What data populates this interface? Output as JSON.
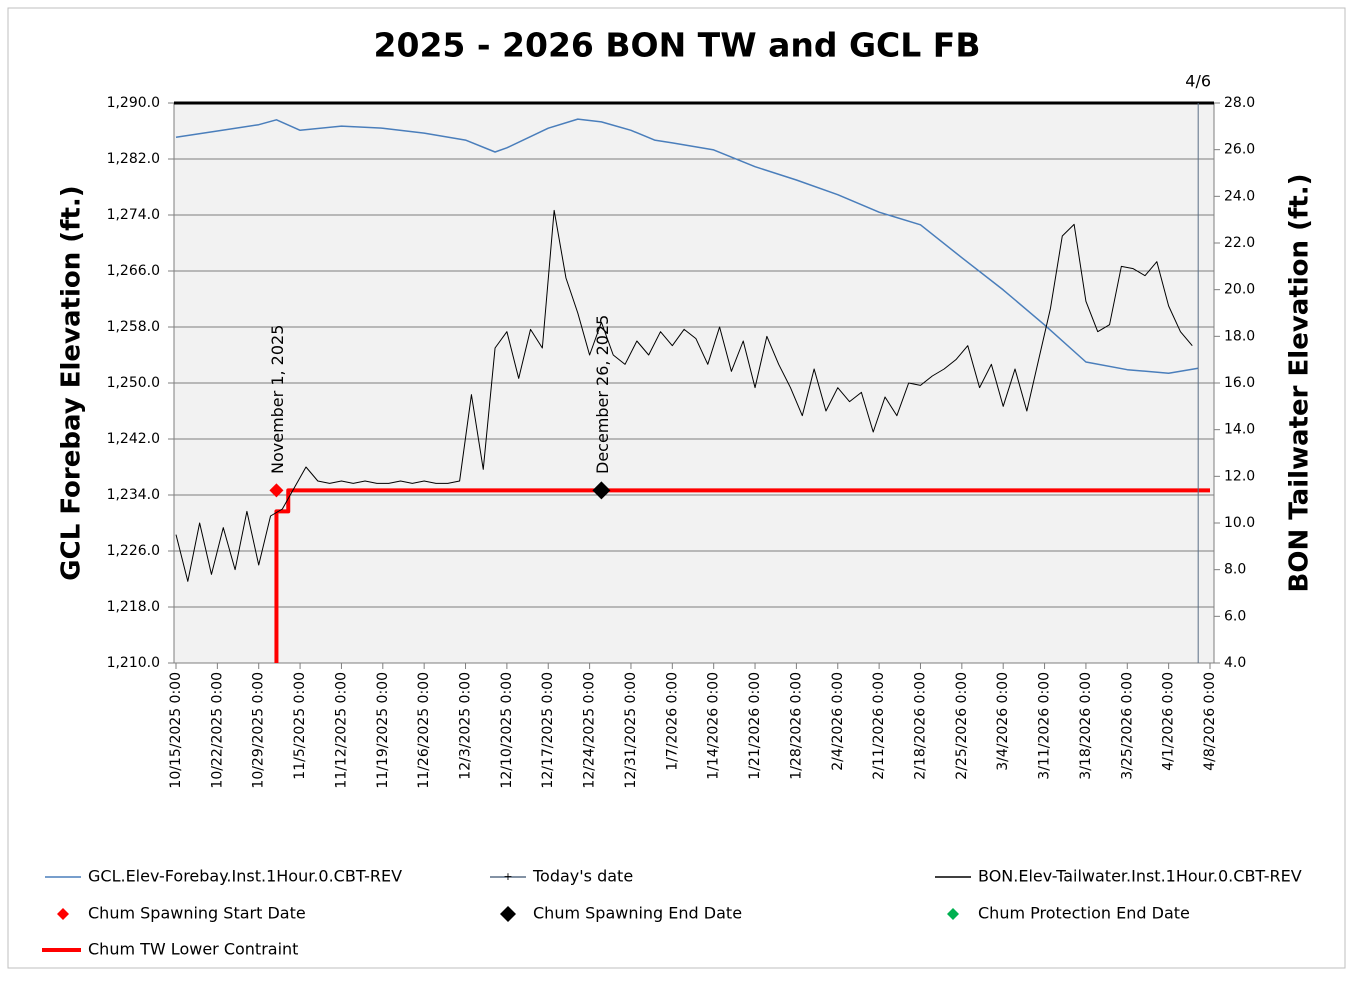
{
  "chart_data": {
    "type": "line",
    "title": "2025 - 2026 BON TW and GCL FB",
    "ylabel": "GCL Forebay Elevation (ft.)",
    "y2label": "BON Tailwater Elevation (ft.)",
    "xlim": [
      "2025-10-15",
      "2026-04-08"
    ],
    "xticks": [
      {
        "value": "2025-10-15",
        "label": "10/15/2025 0:00"
      },
      {
        "value": "2025-10-22",
        "label": "10/22/2025 0:00"
      },
      {
        "value": "2025-10-29",
        "label": "10/29/2025 0:00"
      },
      {
        "value": "2025-11-05",
        "label": "11/5/2025 0:00"
      },
      {
        "value": "2025-11-12",
        "label": "11/12/2025 0:00"
      },
      {
        "value": "2025-11-19",
        "label": "11/19/2025 0:00"
      },
      {
        "value": "2025-11-26",
        "label": "11/26/2025 0:00"
      },
      {
        "value": "2025-12-03",
        "label": "12/3/2025 0:00"
      },
      {
        "value": "2025-12-10",
        "label": "12/10/2025 0:00"
      },
      {
        "value": "2025-12-17",
        "label": "12/17/2025 0:00"
      },
      {
        "value": "2025-12-24",
        "label": "12/24/2025 0:00"
      },
      {
        "value": "2025-12-31",
        "label": "12/31/2025 0:00"
      },
      {
        "value": "2026-01-07",
        "label": "1/7/2026 0:00"
      },
      {
        "value": "2026-01-14",
        "label": "1/14/2026 0:00"
      },
      {
        "value": "2026-01-21",
        "label": "1/21/2026 0:00"
      },
      {
        "value": "2026-01-28",
        "label": "1/28/2026 0:00"
      },
      {
        "value": "2026-02-04",
        "label": "2/4/2026 0:00"
      },
      {
        "value": "2026-02-11",
        "label": "2/11/2026 0:00"
      },
      {
        "value": "2026-02-18",
        "label": "2/18/2026 0:00"
      },
      {
        "value": "2026-02-25",
        "label": "2/25/2026 0:00"
      },
      {
        "value": "2026-03-04",
        "label": "3/4/2026 0:00"
      },
      {
        "value": "2026-03-11",
        "label": "3/11/2026 0:00"
      },
      {
        "value": "2026-03-18",
        "label": "3/18/2026 0:00"
      },
      {
        "value": "2026-03-25",
        "label": "3/25/2026 0:00"
      },
      {
        "value": "2026-04-01",
        "label": "4/1/2026 0:00"
      },
      {
        "value": "2026-04-08",
        "label": "4/8/2026 0:00"
      }
    ],
    "ylim": [
      1210,
      1290
    ],
    "yticks": [
      {
        "value": 1210,
        "label": "1,210.0"
      },
      {
        "value": 1218,
        "label": "1,218.0"
      },
      {
        "value": 1226,
        "label": "1,226.0"
      },
      {
        "value": 1234,
        "label": "1,234.0"
      },
      {
        "value": 1242,
        "label": "1,242.0"
      },
      {
        "value": 1250,
        "label": "1,250.0"
      },
      {
        "value": 1258,
        "label": "1,258.0"
      },
      {
        "value": 1266,
        "label": "1,266.0"
      },
      {
        "value": 1274,
        "label": "1,274.0"
      },
      {
        "value": 1282,
        "label": "1,282.0"
      },
      {
        "value": 1290,
        "label": "1,290.0"
      }
    ],
    "y2lim": [
      4,
      28
    ],
    "y2ticks": [
      {
        "value": 4,
        "label": "4.0"
      },
      {
        "value": 6,
        "label": "6.0"
      },
      {
        "value": 8,
        "label": "8.0"
      },
      {
        "value": 10,
        "label": "10.0"
      },
      {
        "value": 12,
        "label": "12.0"
      },
      {
        "value": 14,
        "label": "14.0"
      },
      {
        "value": 16,
        "label": "16.0"
      },
      {
        "value": 18,
        "label": "18.0"
      },
      {
        "value": 20,
        "label": "20.0"
      },
      {
        "value": 22,
        "label": "22.0"
      },
      {
        "value": 24,
        "label": "24.0"
      },
      {
        "value": 26,
        "label": "26.0"
      },
      {
        "value": 28,
        "label": "28.0"
      }
    ],
    "grid": true,
    "series": [
      {
        "name": "GCL.Elev-Forebay.Inst.1Hour.0.CBT-REV",
        "color": "#4a7ebb",
        "kind": "line",
        "axis": "y",
        "x": [
          "2025-10-15",
          "2025-10-22",
          "2025-10-29",
          "2025-11-01",
          "2025-11-05",
          "2025-11-12",
          "2025-11-19",
          "2025-11-26",
          "2025-12-03",
          "2025-12-08",
          "2025-12-10",
          "2025-12-17",
          "2025-12-22",
          "2025-12-26",
          "2025-12-31",
          "2026-01-04",
          "2026-01-07",
          "2026-01-14",
          "2026-01-21",
          "2026-01-28",
          "2026-02-04",
          "2026-02-11",
          "2026-02-18",
          "2026-02-25",
          "2026-03-04",
          "2026-03-11",
          "2026-03-18",
          "2026-03-25",
          "2026-04-01",
          "2026-04-06"
        ],
        "values": [
          1285.1,
          1286,
          1286.9,
          1287.6,
          1286.1,
          1286.7,
          1286.4,
          1285.7,
          1284.7,
          1283.0,
          1283.6,
          1286.4,
          1287.7,
          1287.3,
          1286.1,
          1284.7,
          1284.3,
          1283.3,
          1280.9,
          1279,
          1276.9,
          1274.4,
          1272.6,
          1267.9,
          1263.3,
          1258.3,
          1253,
          1251.9,
          1251.4,
          1252.1
        ]
      },
      {
        "name": "Today's date",
        "color": "#5a6e86",
        "kind": "line",
        "axis": "y2",
        "x": [
          "2026-04-06",
          "2026-04-06"
        ],
        "values": [
          4,
          28
        ]
      },
      {
        "name": "BON.Elev-Tailwater.Inst.1Hour.0.CBT-REV",
        "color": "#000000",
        "kind": "line",
        "axis": "y2",
        "x": [
          "2025-10-15",
          "2025-10-17",
          "2025-10-19",
          "2025-10-21",
          "2025-10-23",
          "2025-10-25",
          "2025-10-27",
          "2025-10-29",
          "2025-10-31",
          "2025-11-02",
          "2025-11-04",
          "2025-11-06",
          "2025-11-08",
          "2025-11-10",
          "2025-11-12",
          "2025-11-14",
          "2025-11-16",
          "2025-11-18",
          "2025-11-20",
          "2025-11-22",
          "2025-11-24",
          "2025-11-26",
          "2025-11-28",
          "2025-11-30",
          "2025-12-02",
          "2025-12-04",
          "2025-12-06",
          "2025-12-08",
          "2025-12-10",
          "2025-12-12",
          "2025-12-14",
          "2025-12-16",
          "2025-12-18",
          "2025-12-20",
          "2025-12-22",
          "2025-12-24",
          "2025-12-26",
          "2025-12-28",
          "2025-12-30",
          "2026-01-01",
          "2026-01-03",
          "2026-01-05",
          "2026-01-07",
          "2026-01-09",
          "2026-01-11",
          "2026-01-13",
          "2026-01-15",
          "2026-01-17",
          "2026-01-19",
          "2026-01-21",
          "2026-01-23",
          "2026-01-25",
          "2026-01-27",
          "2026-01-29",
          "2026-01-31",
          "2026-02-02",
          "2026-02-04",
          "2026-02-06",
          "2026-02-08",
          "2026-02-10",
          "2026-02-12",
          "2026-02-14",
          "2026-02-16",
          "2026-02-18",
          "2026-02-20",
          "2026-02-22",
          "2026-02-24",
          "2026-02-26",
          "2026-02-28",
          "2026-03-02",
          "2026-03-04",
          "2026-03-06",
          "2026-03-08",
          "2026-03-10",
          "2026-03-12",
          "2026-03-14",
          "2026-03-16",
          "2026-03-18",
          "2026-03-20",
          "2026-03-22",
          "2026-03-24",
          "2026-03-26",
          "2026-03-28",
          "2026-03-30",
          "2026-04-01",
          "2026-04-03",
          "2026-04-05"
        ],
        "values": [
          9.5,
          7.5,
          10,
          7.8,
          9.8,
          8,
          10.5,
          8.2,
          10.3,
          10.6,
          11.5,
          12.4,
          11.8,
          11.7,
          11.8,
          11.7,
          11.8,
          11.7,
          11.7,
          11.8,
          11.7,
          11.8,
          11.7,
          11.7,
          11.8,
          15.5,
          12.3,
          17.5,
          18.2,
          16.2,
          18.3,
          17.5,
          23.4,
          20.5,
          19,
          17.2,
          18.6,
          17.2,
          16.8,
          17.8,
          17.2,
          18.2,
          17.6,
          18.3,
          17.9,
          16.8,
          18.4,
          16.5,
          17.8,
          15.8,
          18,
          16.8,
          15.8,
          14.6,
          16.6,
          14.8,
          15.8,
          15.2,
          15.6,
          13.9,
          15.4,
          14.6,
          16,
          15.9,
          16.3,
          16.6,
          17,
          17.6,
          15.8,
          16.8,
          15,
          16.6,
          14.8,
          17,
          19.2,
          22.3,
          22.8,
          19.5,
          18.2,
          18.5,
          21,
          20.9,
          20.6,
          21.2,
          19.3,
          18.2,
          17.6
        ]
      },
      {
        "name": "Chum Spawning Start Date",
        "color": "#ff0000",
        "kind": "marker",
        "axis": "y2",
        "x": [
          "2025-11-01"
        ],
        "values": [
          11.4
        ]
      },
      {
        "name": "Chum Spawning End Date",
        "color": "#000000",
        "kind": "marker",
        "axis": "y2",
        "x": [
          "2025-12-26"
        ],
        "values": [
          11.4
        ]
      },
      {
        "name": "Chum Protection End Date",
        "color": "#00b050",
        "kind": "marker",
        "axis": "y2",
        "x": [],
        "values": []
      },
      {
        "name": "Chum TW Lower Contraint",
        "color": "#ff0000",
        "kind": "thick",
        "axis": "y2",
        "x": [
          "2025-11-01",
          "2025-11-01",
          "2025-11-03",
          "2025-11-03",
          "2026-04-08"
        ],
        "values": [
          4,
          10.5,
          10.5,
          11.4,
          11.4
        ]
      }
    ],
    "annotations": [
      {
        "text": "November 1, 2025",
        "x": "2025-11-01"
      },
      {
        "text": "December 26, 2025",
        "x": "2025-12-26"
      },
      {
        "text": "4/6",
        "x": "2026-04-06"
      }
    ]
  }
}
